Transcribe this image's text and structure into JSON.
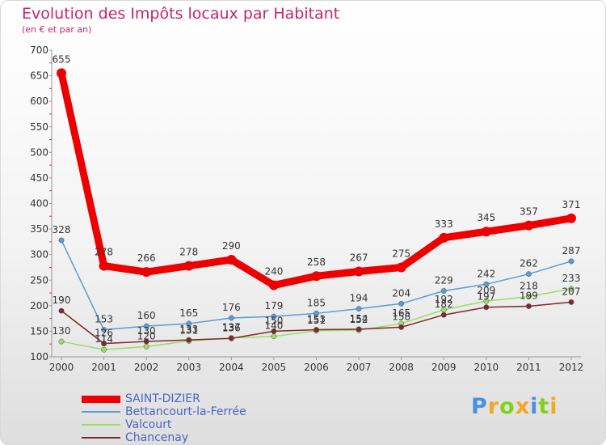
{
  "chart_data": {
    "type": "line",
    "title": "Evolution des Impôts locaux par Habitant",
    "subtitle": "(en € et par an)",
    "xlabel": "",
    "ylabel": "",
    "ylim": [
      100,
      700
    ],
    "yticks": [
      "100",
      "150",
      "200",
      "250",
      "300",
      "350",
      "400",
      "450",
      "500",
      "550",
      "600",
      "650",
      "700"
    ],
    "categories": [
      "2000",
      "2001",
      "2002",
      "2003",
      "2004",
      "2005",
      "2006",
      "2007",
      "2008",
      "2009",
      "2010",
      "2011",
      "2012"
    ],
    "series": [
      {
        "name": "SAINT-DIZIER",
        "color": "#ee0000",
        "values": [
          655,
          278,
          266,
          278,
          290,
          240,
          258,
          267,
          275,
          333,
          345,
          357,
          371
        ],
        "labels": [
          "655",
          "278",
          "266",
          "278",
          "290",
          "240",
          "258",
          "267",
          "275",
          "333",
          "345",
          "357",
          "371"
        ]
      },
      {
        "name": "Bettancourt-la-Ferrée",
        "color": "#5b9bd5",
        "values": [
          328,
          153,
          160,
          165,
          176,
          179,
          185,
          194,
          204,
          229,
          242,
          262,
          287
        ],
        "labels": [
          "328",
          "153",
          "160",
          "165",
          "176",
          "179",
          "185",
          "194",
          "204",
          "229",
          "242",
          "262",
          "287"
        ]
      },
      {
        "name": "Valcourt",
        "color": "#99dd66",
        "values": [
          130,
          114,
          120,
          131,
          137,
          140,
          151,
          152,
          165,
          192,
          209,
          218,
          233
        ],
        "labels": [
          "130",
          "114",
          "120",
          "131",
          "137",
          "140",
          "151",
          "152",
          "165",
          "192",
          "209",
          "218",
          "233"
        ]
      },
      {
        "name": "Chancenay",
        "color": "#7a2a2a",
        "values": [
          190,
          126,
          130,
          133,
          136,
          150,
          153,
          154,
          158,
          182,
          197,
          199,
          207
        ],
        "labels": [
          "190",
          "126",
          "130",
          "133",
          "136",
          "150",
          "153",
          "154",
          "158",
          "182",
          "197",
          "199",
          "207"
        ]
      }
    ],
    "legend_position": "bottom-left",
    "grid": false
  },
  "logo": {
    "letters": [
      "P",
      "r",
      "o",
      "x",
      "i",
      "t",
      "i"
    ],
    "colors": [
      "#4a90e2",
      "#f5a623",
      "#7ed321",
      "#f5a623",
      "#4a90e2",
      "#7ed321",
      "#f5a623"
    ]
  }
}
